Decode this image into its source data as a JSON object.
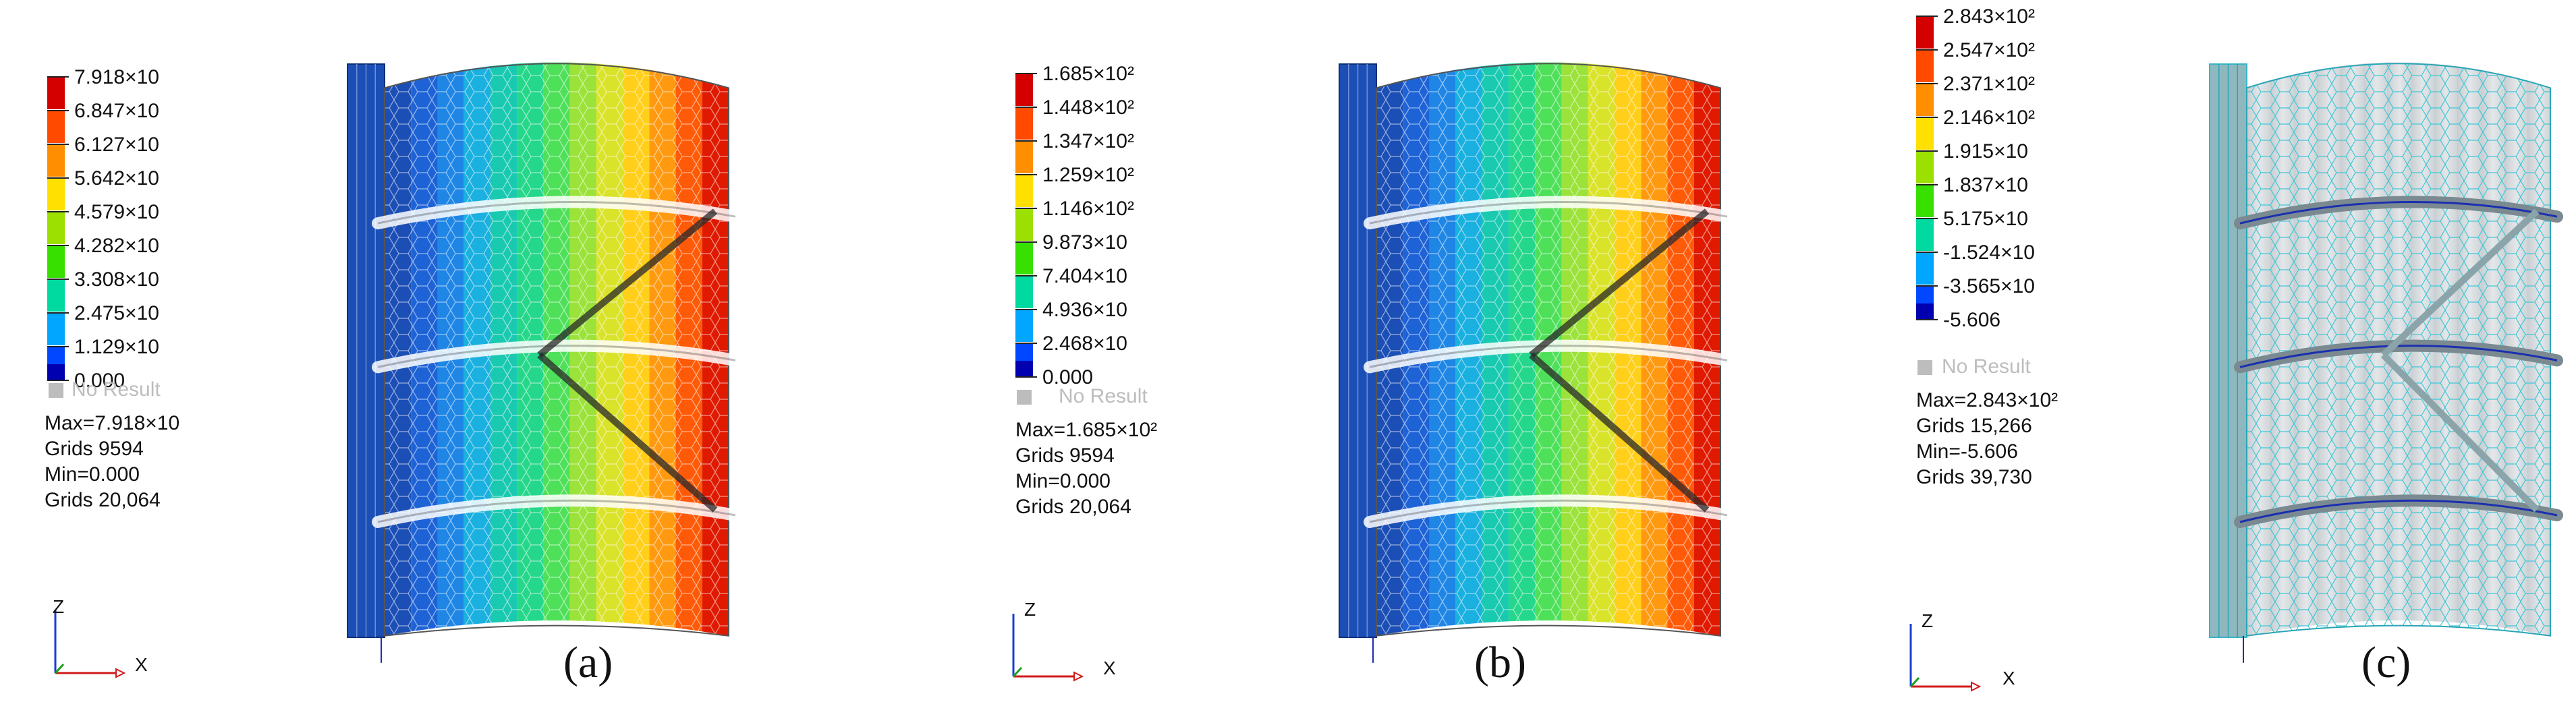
{
  "panels": [
    {
      "id": "a",
      "caption": "(a)",
      "legend": {
        "labels": [
          "7.918×10",
          "6.847×10",
          "6.127×10",
          "5.642×10",
          "4.579×10",
          "4.282×10",
          "3.308×10",
          "2.475×10",
          "1.129×10",
          "0.000"
        ],
        "colors": [
          "#d40000",
          "#ff4a00",
          "#ff8f00",
          "#ffe000",
          "#9be000",
          "#38e000",
          "#00d9a0",
          "#00a6ff",
          "#0047ff",
          "#0000b0"
        ]
      },
      "no_result": "No Result",
      "stats": [
        "Max=7.918×10",
        "Grids 9594",
        "Min=0.000",
        "Grids 20,064"
      ],
      "axes": {
        "z": "Z",
        "x": "X"
      }
    },
    {
      "id": "b",
      "caption": "(b)",
      "legend": {
        "labels": [
          "1.685×10²",
          "1.448×10²",
          "1.347×10²",
          "1.259×10²",
          "1.146×10²",
          "9.873×10",
          "7.404×10",
          "4.936×10",
          "2.468×10",
          "0.000"
        ],
        "colors": [
          "#d40000",
          "#ff4a00",
          "#ff8f00",
          "#ffe000",
          "#9be000",
          "#38e000",
          "#00d9a0",
          "#00a6ff",
          "#0047ff",
          "#0000b0"
        ]
      },
      "no_result": "No Result",
      "stats": [
        "Max=1.685×10²",
        "Grids 9594",
        "Min=0.000",
        "Grids 20,064"
      ],
      "axes": {
        "z": "Z",
        "x": "X"
      }
    },
    {
      "id": "c",
      "caption": "(c)",
      "legend": {
        "labels": [
          "2.843×10²",
          "2.547×10²",
          "2.371×10²",
          "2.146×10²",
          "1.915×10",
          "1.837×10",
          "5.175×10",
          "-1.524×10",
          "-3.565×10",
          "-5.606"
        ],
        "colors": [
          "#d40000",
          "#ff4a00",
          "#ff8f00",
          "#ffe000",
          "#9be000",
          "#38e000",
          "#00d9a0",
          "#00a6ff",
          "#0047ff",
          "#0000b0"
        ]
      },
      "no_result": "No Result",
      "stats": [
        "Max=2.843×10²",
        "Grids 15,266",
        "Min=-5.606",
        "Grids 39,730"
      ],
      "axes": {
        "z": "Z",
        "x": "X"
      }
    }
  ],
  "band_colors": [
    "#1c4fb5",
    "#1e63d6",
    "#1f86e6",
    "#1ab0e0",
    "#19c9b0",
    "#25d78a",
    "#4fe05a",
    "#9be23a",
    "#d9e32a",
    "#ffcf1a",
    "#ff9a10",
    "#ff5a08",
    "#e01a00"
  ]
}
